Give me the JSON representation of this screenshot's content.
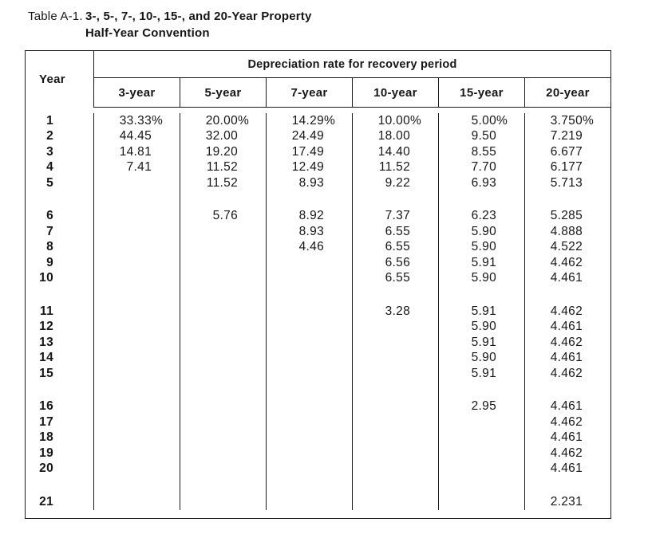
{
  "title": {
    "label": "Table A-1.",
    "line1": "3-, 5-, 7-, 10-, 15-, and 20-Year Property",
    "line2": "Half-Year Convention"
  },
  "table": {
    "year_label": "Year",
    "span_label": "Depreciation rate for recovery period",
    "columns": [
      "3-year",
      "5-year",
      "7-year",
      "10-year",
      "15-year",
      "20-year"
    ],
    "groups": [
      {
        "rows": [
          {
            "year": "1",
            "values": [
              "33.33%",
              "20.00%",
              "14.29%",
              "10.00%",
              "5.00%",
              "3.750%"
            ]
          },
          {
            "year": "2",
            "values": [
              "44.45",
              "32.00",
              "24.49",
              "18.00",
              "9.50",
              "7.219"
            ]
          },
          {
            "year": "3",
            "values": [
              "14.81",
              "19.20",
              "17.49",
              "14.40",
              "8.55",
              "6.677"
            ]
          },
          {
            "year": "4",
            "values": [
              "7.41",
              "11.52",
              "12.49",
              "11.52",
              "7.70",
              "6.177"
            ]
          },
          {
            "year": "5",
            "values": [
              "",
              "11.52",
              "8.93",
              "9.22",
              "6.93",
              "5.713"
            ]
          }
        ]
      },
      {
        "rows": [
          {
            "year": "6",
            "values": [
              "",
              "5.76",
              "8.92",
              "7.37",
              "6.23",
              "5.285"
            ]
          },
          {
            "year": "7",
            "values": [
              "",
              "",
              "8.93",
              "6.55",
              "5.90",
              "4.888"
            ]
          },
          {
            "year": "8",
            "values": [
              "",
              "",
              "4.46",
              "6.55",
              "5.90",
              "4.522"
            ]
          },
          {
            "year": "9",
            "values": [
              "",
              "",
              "",
              "6.56",
              "5.91",
              "4.462"
            ]
          },
          {
            "year": "10",
            "values": [
              "",
              "",
              "",
              "6.55",
              "5.90",
              "4.461"
            ]
          }
        ]
      },
      {
        "rows": [
          {
            "year": "11",
            "values": [
              "",
              "",
              "",
              "3.28",
              "5.91",
              "4.462"
            ]
          },
          {
            "year": "12",
            "values": [
              "",
              "",
              "",
              "",
              "5.90",
              "4.461"
            ]
          },
          {
            "year": "13",
            "values": [
              "",
              "",
              "",
              "",
              "5.91",
              "4.462"
            ]
          },
          {
            "year": "14",
            "values": [
              "",
              "",
              "",
              "",
              "5.90",
              "4.461"
            ]
          },
          {
            "year": "15",
            "values": [
              "",
              "",
              "",
              "",
              "5.91",
              "4.462"
            ]
          }
        ]
      },
      {
        "rows": [
          {
            "year": "16",
            "values": [
              "",
              "",
              "",
              "",
              "2.95",
              "4.461"
            ]
          },
          {
            "year": "17",
            "values": [
              "",
              "",
              "",
              "",
              "",
              "4.462"
            ]
          },
          {
            "year": "18",
            "values": [
              "",
              "",
              "",
              "",
              "",
              "4.461"
            ]
          },
          {
            "year": "19",
            "values": [
              "",
              "",
              "",
              "",
              "",
              "4.462"
            ]
          },
          {
            "year": "20",
            "values": [
              "",
              "",
              "",
              "",
              "",
              "4.461"
            ]
          }
        ]
      },
      {
        "rows": [
          {
            "year": "21",
            "values": [
              "",
              "",
              "",
              "",
              "",
              "2.231"
            ]
          }
        ]
      }
    ]
  }
}
